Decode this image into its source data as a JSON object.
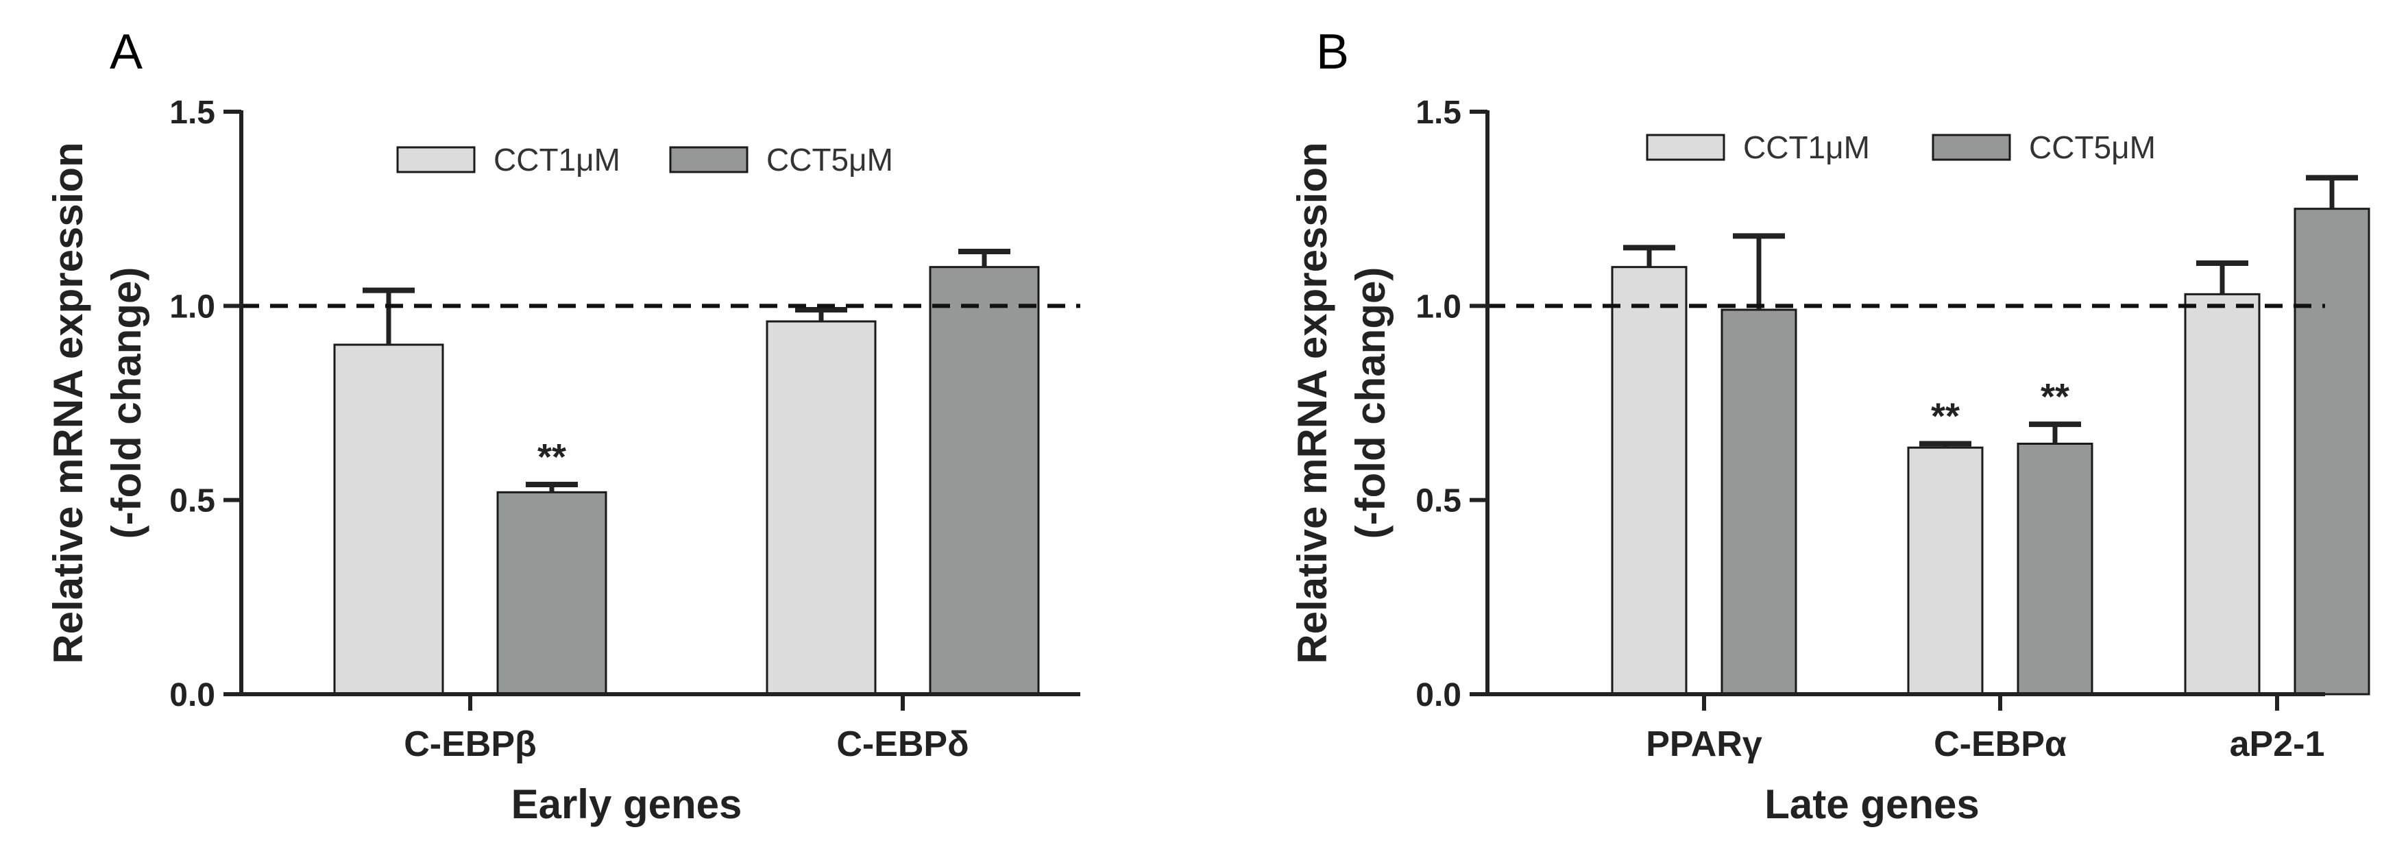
{
  "colors": {
    "series1": "#dcdcdc",
    "series2": "#959897",
    "axis": "#222222",
    "bar_stroke": "#1a1a1a",
    "reference_line": "#111111"
  },
  "chart_data": [
    {
      "panel": "A",
      "type": "bar",
      "title": "",
      "xlabel": "Early genes",
      "ylabel_line1": "Relative mRNA expression",
      "ylabel_line2": "(-fold change)",
      "ylim": [
        0,
        1.5
      ],
      "yticks": [
        0.0,
        0.5,
        1.0,
        1.5
      ],
      "ytick_labels": [
        "0.0",
        "0.5",
        "1.0",
        "1.5"
      ],
      "reference_line": 1.0,
      "legend_position": "top",
      "categories": [
        "C-EBPβ",
        "C-EBPδ"
      ],
      "series": [
        {
          "name": "CCT1μM",
          "values": [
            0.9,
            0.96
          ],
          "errors": [
            0.14,
            0.03
          ],
          "significance": [
            "",
            ""
          ]
        },
        {
          "name": "CCT5μM",
          "values": [
            0.52,
            1.1
          ],
          "errors": [
            0.02,
            0.04
          ],
          "significance": [
            "**",
            ""
          ]
        }
      ]
    },
    {
      "panel": "B",
      "type": "bar",
      "title": "",
      "xlabel": "Late genes",
      "ylabel_line1": "Relative mRNA expression",
      "ylabel_line2": "(-fold change)",
      "ylim": [
        0,
        1.5
      ],
      "yticks": [
        0.0,
        0.5,
        1.0,
        1.5
      ],
      "ytick_labels": [
        "0.0",
        "0.5",
        "1.0",
        "1.5"
      ],
      "reference_line": 1.0,
      "legend_position": "top",
      "categories": [
        "PPARγ",
        "C-EBPα",
        "aP2-1"
      ],
      "series": [
        {
          "name": "CCT1μM",
          "values": [
            1.1,
            0.635,
            1.03
          ],
          "errors": [
            0.05,
            0.01,
            0.08
          ],
          "significance": [
            "",
            "**",
            ""
          ]
        },
        {
          "name": "CCT5μM",
          "values": [
            0.99,
            0.645,
            1.25
          ],
          "errors": [
            0.19,
            0.05,
            0.08
          ],
          "significance": [
            "",
            "**",
            ""
          ]
        }
      ]
    }
  ]
}
